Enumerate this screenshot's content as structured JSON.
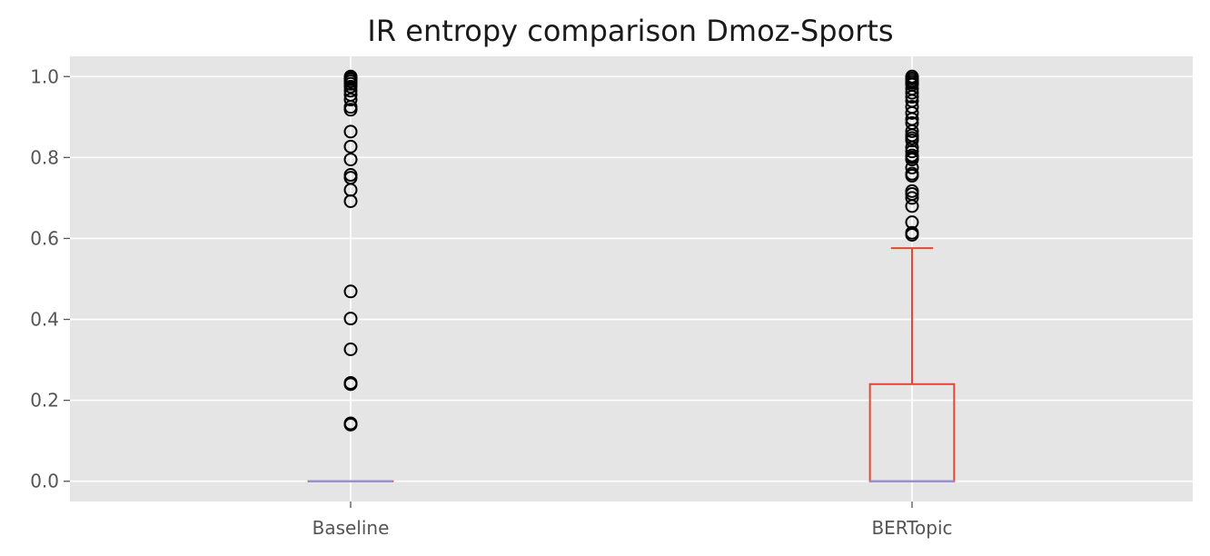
{
  "chart_data": {
    "type": "box",
    "title": "IR entropy comparison Dmoz-Sports",
    "xlabel": "",
    "ylabel": "",
    "ylim": [
      -0.05,
      1.05
    ],
    "yticks": [
      "0.0",
      "0.2",
      "0.4",
      "0.6",
      "0.8",
      "1.0"
    ],
    "grid": true,
    "categories": [
      "Baseline",
      "BERTopic"
    ],
    "boxes": [
      {
        "name": "Baseline",
        "whisker_low": 0.0,
        "q1": 0.0,
        "median": 0.0,
        "q3": 0.0,
        "whisker_high": 0.0,
        "outliers": [
          0.14,
          0.143,
          0.24,
          0.243,
          0.326,
          0.402,
          0.469,
          0.692,
          0.72,
          0.75,
          0.757,
          0.795,
          0.827,
          0.864,
          0.918,
          0.925,
          0.943,
          0.955,
          0.965,
          0.975,
          0.982,
          0.988,
          0.993,
          0.997,
          1.0
        ]
      },
      {
        "name": "BERTopic",
        "whisker_low": 0.0,
        "q1": 0.0,
        "median": 0.0,
        "q3": 0.24,
        "whisker_high": 0.576,
        "outliers": [
          0.609,
          0.614,
          0.64,
          0.68,
          0.7,
          0.71,
          0.717,
          0.755,
          0.76,
          0.775,
          0.795,
          0.8,
          0.805,
          0.815,
          0.825,
          0.842,
          0.848,
          0.855,
          0.865,
          0.885,
          0.895,
          0.91,
          0.925,
          0.94,
          0.95,
          0.96,
          0.97,
          0.98,
          0.985,
          0.99,
          0.995,
          1.0
        ]
      }
    ],
    "colors": {
      "box": "#e24a33",
      "median": "#988ed5",
      "outlier": "#000000",
      "plot_background": "#e5e5e5",
      "grid": "#ffffff"
    }
  }
}
